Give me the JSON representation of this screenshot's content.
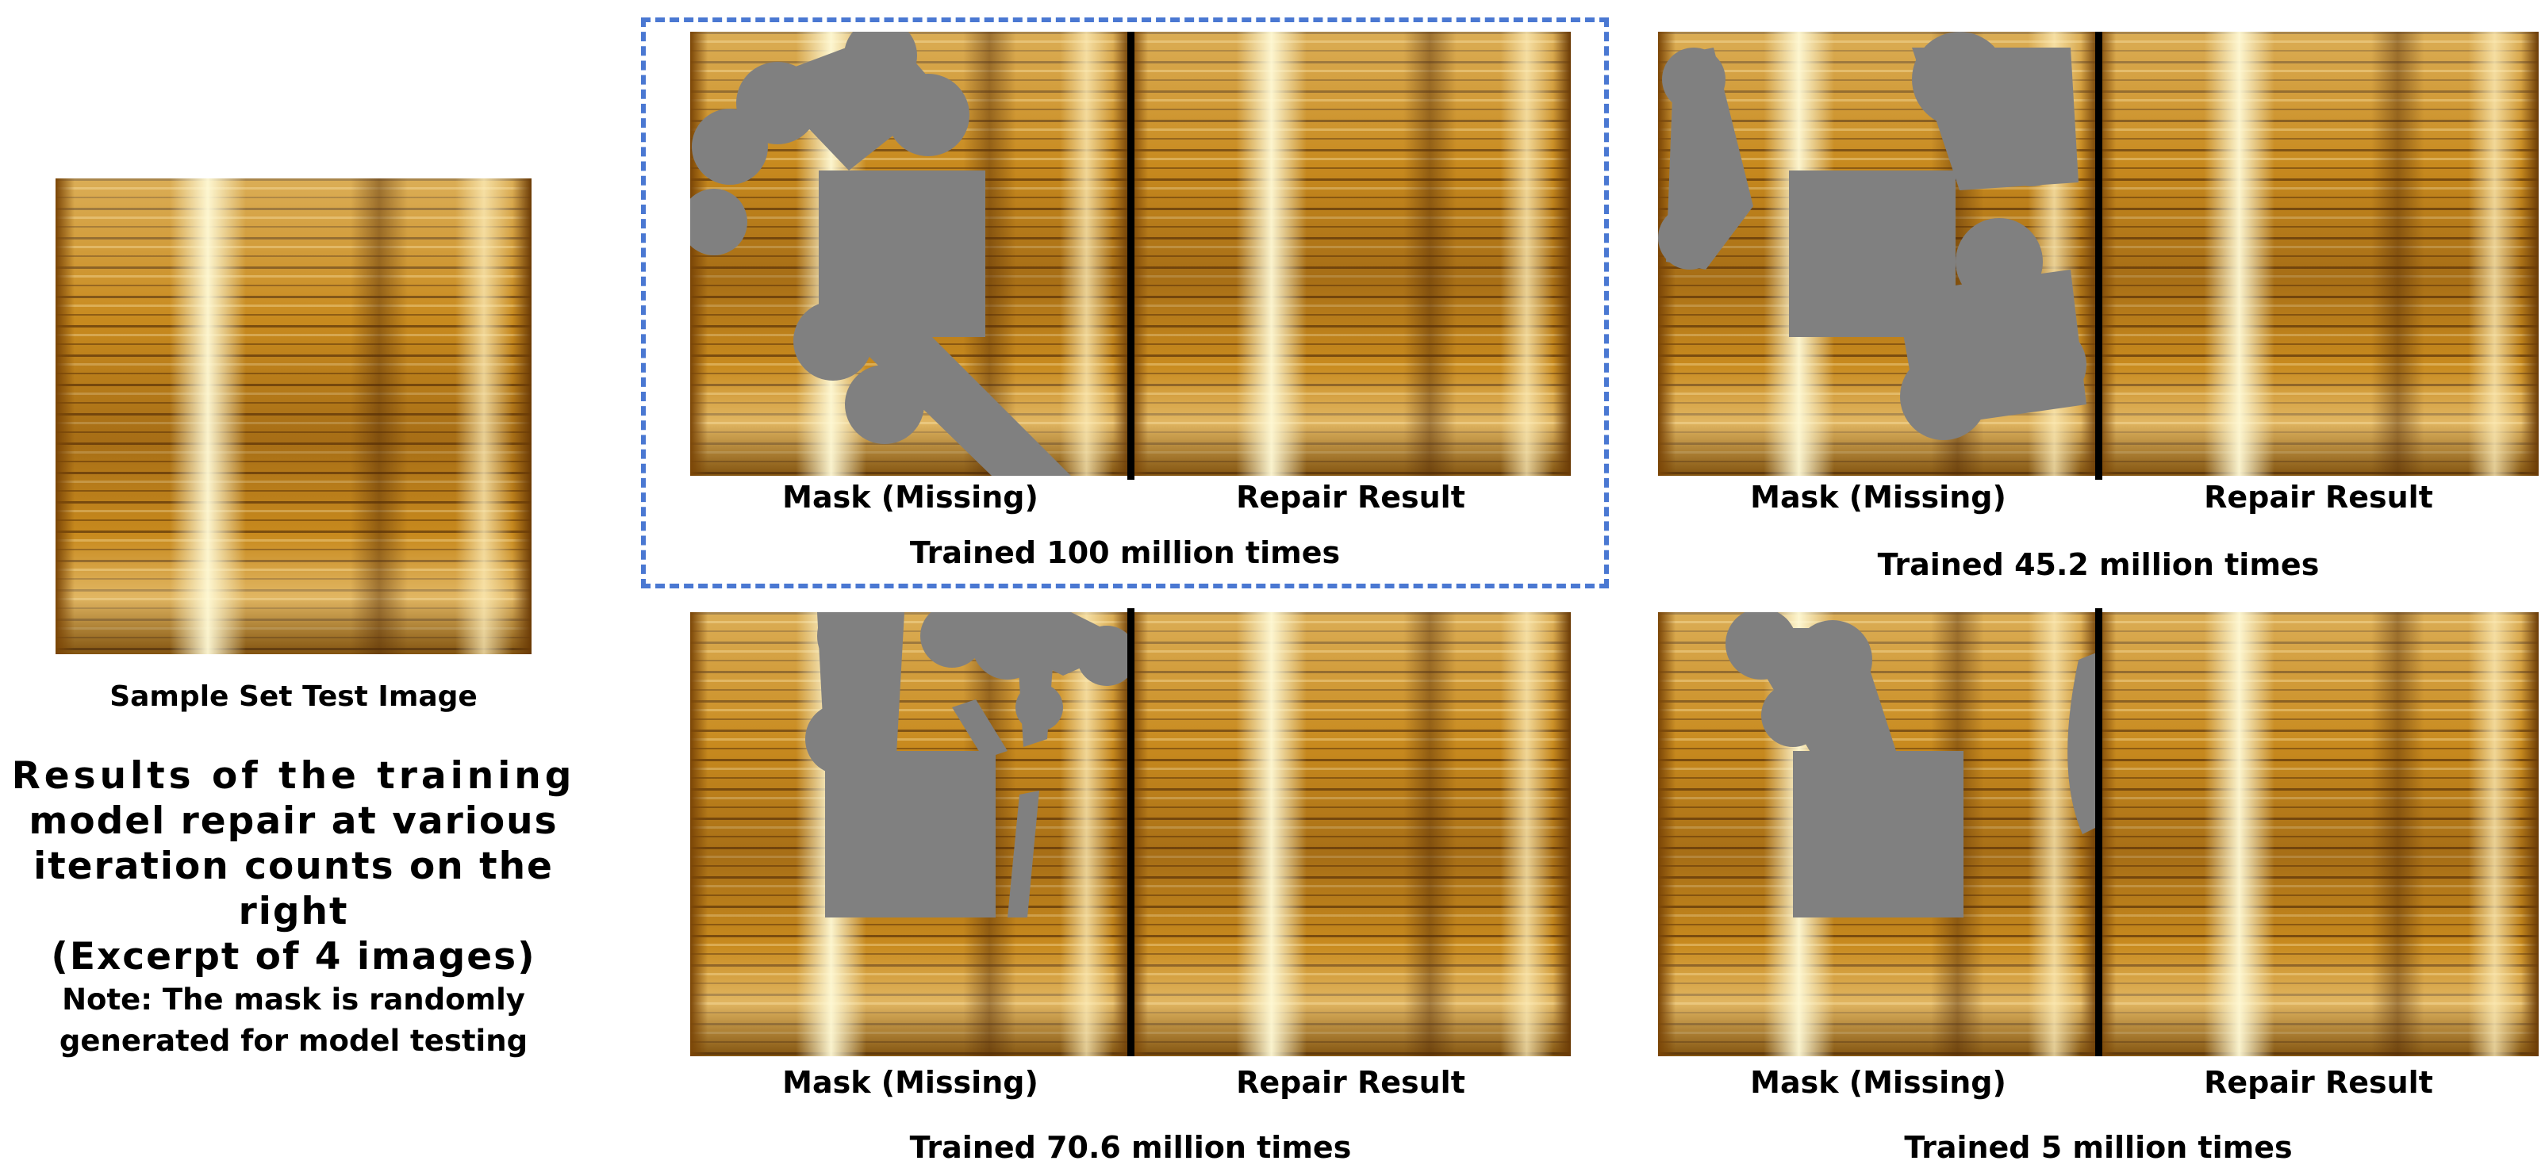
{
  "sample": {
    "caption": "Sample Set Test Image"
  },
  "description": {
    "lines": [
      "Results of the training",
      "model repair at various",
      "iteration counts on the right",
      "(Excerpt of 4 images)"
    ],
    "note_lines": [
      "Note: The mask is randomly",
      "generated for model testing"
    ]
  },
  "panels": [
    {
      "id": "100m",
      "mask_label": "Mask (Missing)",
      "repair_label": "Repair Result",
      "title": "Trained 100 million times",
      "highlighted": true
    },
    {
      "id": "45.2m",
      "mask_label": "Mask (Missing)",
      "repair_label": "Repair Result",
      "title": "Trained 45.2 million times",
      "highlighted": false
    },
    {
      "id": "70.6m",
      "mask_label": "Mask (Missing)",
      "repair_label": "Repair Result",
      "title": "Trained 70.6 million times",
      "highlighted": false
    },
    {
      "id": "5m",
      "mask_label": "Mask (Missing)",
      "repair_label": "Repair Result",
      "title": "Trained 5 million times",
      "highlighted": false
    }
  ],
  "colors": {
    "mask_gray": "#808080",
    "highlight_border": "#4a78d2",
    "texture_base": "#c88a1e"
  }
}
